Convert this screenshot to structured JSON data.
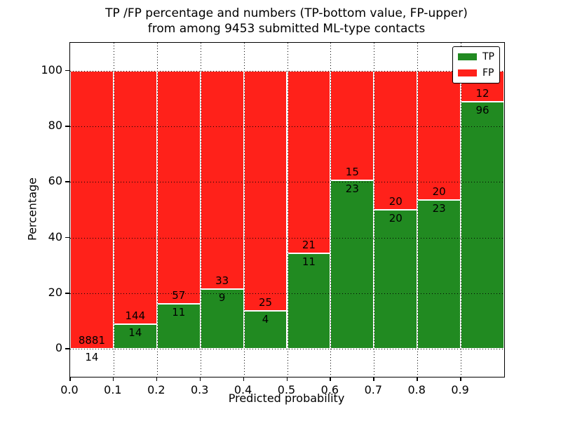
{
  "title": {
    "line1": "TP /FP percentage and numbers (TP-bottom value, FP-upper)",
    "line2": "from among 9453 submitted ML-type contacts"
  },
  "chart_data": {
    "type": "bar",
    "stacked": true,
    "normalized": "percent",
    "title": "TP /FP percentage and numbers (TP-bottom value, FP-upper)\nfrom among 9453 submitted ML-type contacts",
    "total_submitted": 9453,
    "xlabel": "Predicted probability",
    "ylabel": "Percentage",
    "xlim": [
      0.0,
      1.0
    ],
    "ylim": [
      -10,
      110
    ],
    "bin_width": 0.1,
    "bin_starts": [
      0.0,
      0.1,
      0.2,
      0.3,
      0.4,
      0.5,
      0.6,
      0.7,
      0.8,
      0.9
    ],
    "xticks": [
      "0.0",
      "0.1",
      "0.2",
      "0.3",
      "0.4",
      "0.5",
      "0.6",
      "0.7",
      "0.8",
      "0.9"
    ],
    "yticks": [
      0,
      20,
      40,
      60,
      80,
      100
    ],
    "grid": "dotted",
    "bar_edge_color": "#ffffff",
    "series": [
      {
        "name": "TP",
        "color": "#218a21",
        "counts": [
          14,
          14,
          11,
          9,
          4,
          11,
          23,
          20,
          23,
          96
        ]
      },
      {
        "name": "FP",
        "color": "#ff211a",
        "counts": [
          8881,
          144,
          57,
          33,
          25,
          21,
          15,
          20,
          20,
          12
        ]
      }
    ],
    "tp_percent": [
      0.16,
      8.86,
      16.18,
      21.43,
      13.79,
      34.38,
      60.53,
      50.0,
      53.49,
      88.89
    ],
    "legend": {
      "position": "upper right",
      "entries": [
        {
          "label": "TP",
          "color": "#218a21"
        },
        {
          "label": "FP",
          "color": "#ff211a"
        }
      ]
    }
  }
}
